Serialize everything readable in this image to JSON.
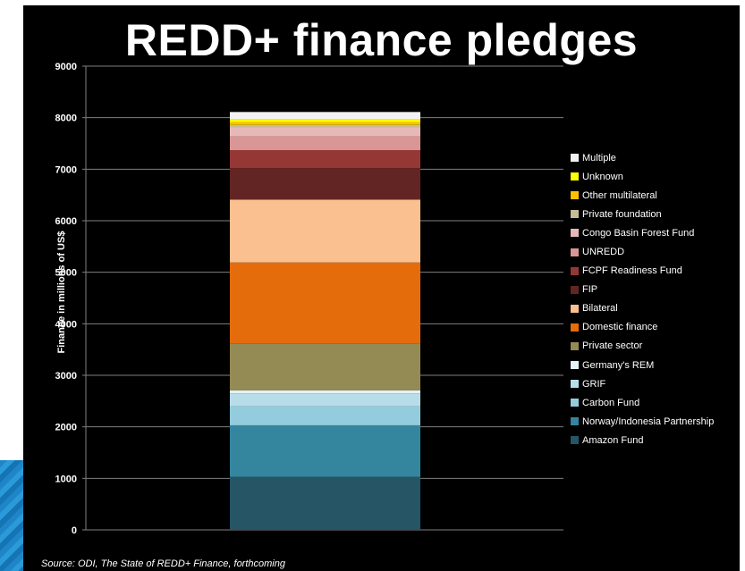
{
  "page": {
    "title": "REDD+ finance pledges",
    "source": "Source: ODI, The State of REDD+ Finance, forthcoming"
  },
  "chart_data": {
    "type": "bar",
    "stacked": true,
    "title": "REDD+ finance pledges",
    "xlabel": "",
    "ylabel": "Finance in millions of US$",
    "ylim": [
      0,
      9000
    ],
    "yticks": [
      0,
      1000,
      2000,
      3000,
      4000,
      5000,
      6000,
      7000,
      8000,
      9000
    ],
    "gridlines": true,
    "legend_position": "right",
    "categories": [
      ""
    ],
    "series": [
      {
        "name": "Amazon Fund",
        "values": [
          1030
        ],
        "color": "#265566"
      },
      {
        "name": "Norway/Indonesia Partnership",
        "values": [
          1000
        ],
        "color": "#34869f"
      },
      {
        "name": "Carbon Fund",
        "values": [
          370
        ],
        "color": "#93cddd"
      },
      {
        "name": "GRIF",
        "values": [
          250
        ],
        "color": "#b7dde8"
      },
      {
        "name": "Germany's REM",
        "values": [
          60
        ],
        "color": "#e4f1f5"
      },
      {
        "name": "Private sector",
        "values": [
          900
        ],
        "color": "#948a54"
      },
      {
        "name": "Domestic finance",
        "values": [
          1580
        ],
        "color": "#e46c0a"
      },
      {
        "name": "Bilateral",
        "values": [
          1220
        ],
        "color": "#fac090"
      },
      {
        "name": "FIP",
        "values": [
          610
        ],
        "color": "#632523"
      },
      {
        "name": "FCPF Readiness Fund",
        "values": [
          350
        ],
        "color": "#953735"
      },
      {
        "name": "UNREDD",
        "values": [
          270
        ],
        "color": "#d99694"
      },
      {
        "name": "Congo Basin Forest Fund",
        "values": [
          180
        ],
        "color": "#e6b9b8"
      },
      {
        "name": "Private foundation",
        "values": [
          40
        ],
        "color": "#c4bd97"
      },
      {
        "name": "Other multilateral",
        "values": [
          50
        ],
        "color": "#ffc000"
      },
      {
        "name": "Unknown",
        "values": [
          60
        ],
        "color": "#ffff00"
      },
      {
        "name": "Multiple",
        "values": [
          140
        ],
        "color": "#f2f2f2"
      }
    ]
  }
}
